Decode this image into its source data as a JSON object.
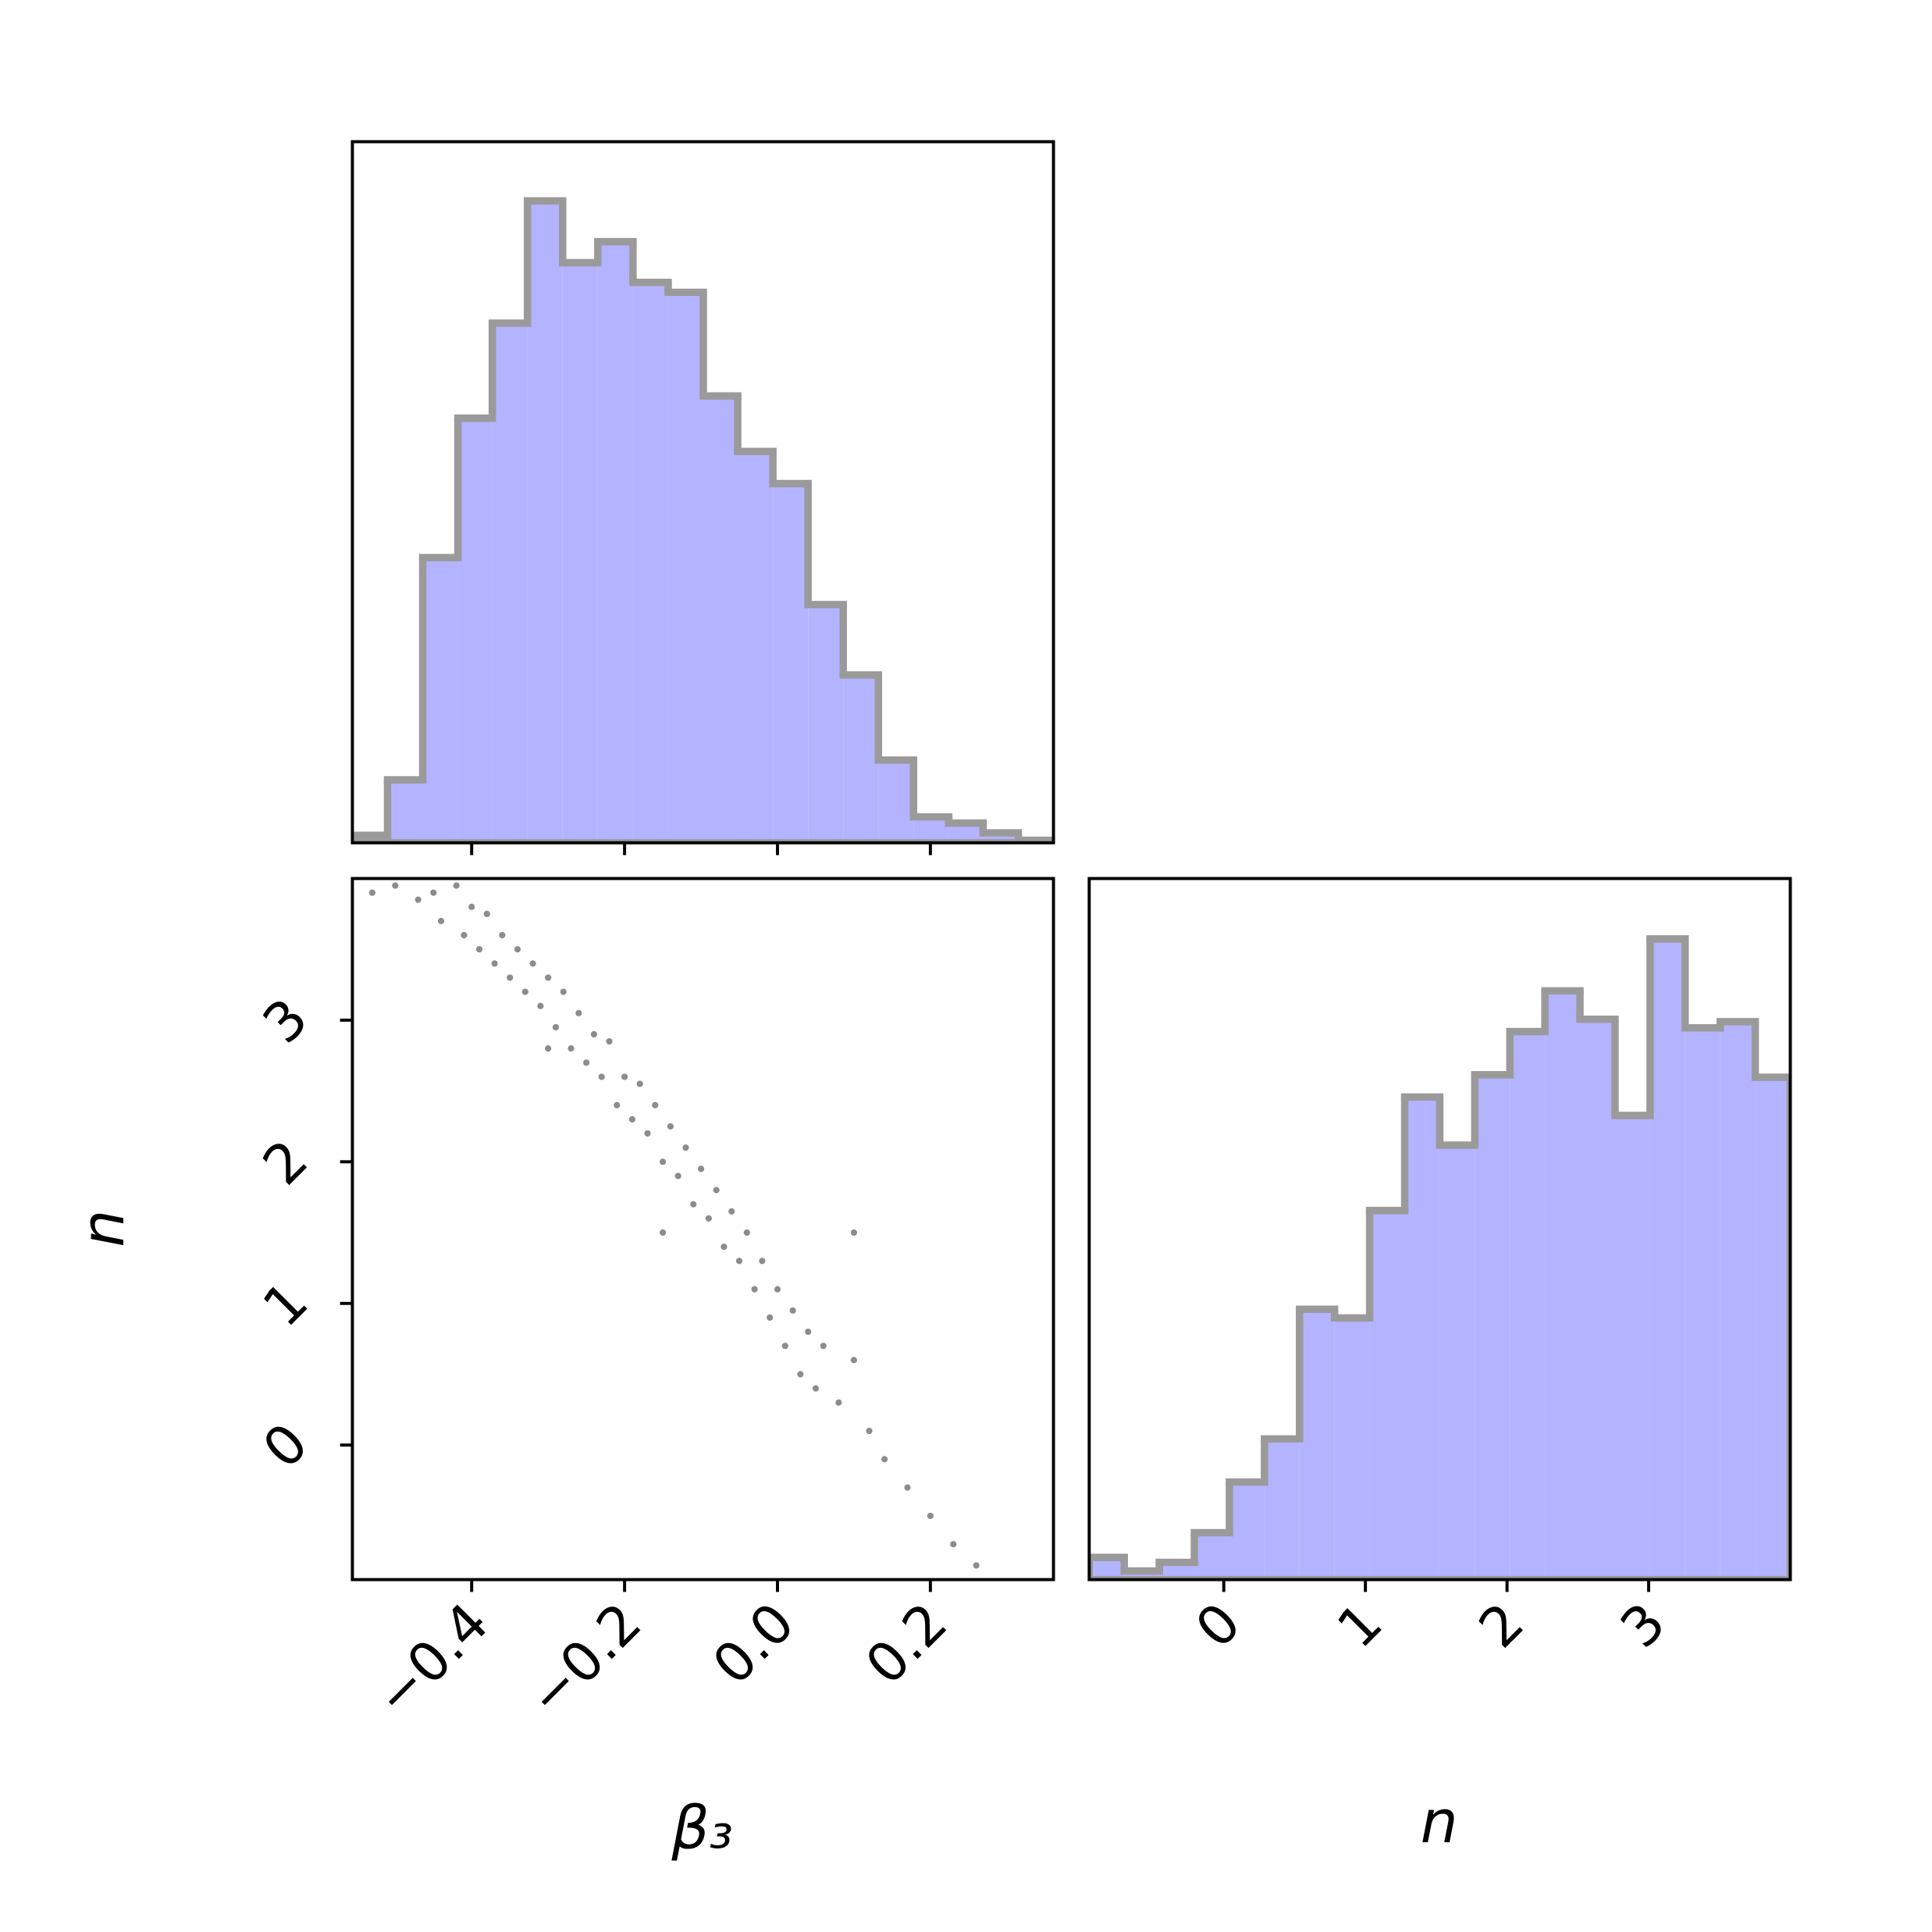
{
  "chart_data": [
    {
      "type": "histogram",
      "bins": [
        -0.556,
        -0.51,
        -0.464,
        -0.418,
        -0.373,
        -0.327,
        -0.281,
        -0.235,
        -0.189,
        -0.143,
        -0.097,
        -0.052,
        -0.006,
        0.04,
        0.086,
        0.132,
        0.178,
        0.224,
        0.269,
        0.315,
        0.361
      ],
      "values": [
        6,
        51,
        231,
        344,
        421,
        520,
        470,
        487,
        454,
        446,
        362,
        317,
        291,
        193,
        136,
        67,
        21,
        16,
        8,
        2
      ],
      "xlim": [
        -0.556,
        0.361
      ],
      "ylim": [
        0,
        568
      ],
      "color": "#b3b3ff",
      "edgecolor": "#9a9a9a"
    },
    {
      "type": "scatter",
      "x": [
        -0.5,
        -0.47,
        -0.45,
        -0.44,
        -0.42,
        -0.41,
        -0.4,
        -0.39,
        -0.38,
        -0.37,
        -0.36,
        -0.35,
        -0.34,
        -0.33,
        -0.32,
        -0.31,
        -0.3,
        -0.29,
        -0.28,
        -0.27,
        -0.26,
        -0.25,
        -0.24,
        -0.23,
        -0.22,
        -0.21,
        -0.2,
        -0.19,
        -0.18,
        -0.17,
        -0.16,
        -0.15,
        -0.14,
        -0.13,
        -0.12,
        -0.11,
        -0.1,
        -0.09,
        -0.08,
        -0.07,
        -0.06,
        -0.05,
        -0.04,
        -0.03,
        -0.02,
        -0.01,
        0.0,
        0.01,
        0.02,
        0.03,
        0.04,
        0.05,
        0.06,
        0.08,
        0.1,
        0.12,
        0.14,
        0.17,
        0.2,
        0.23,
        0.26,
        -0.53,
        -0.3,
        -0.15,
        0.1
      ],
      "y": [
        3.95,
        3.85,
        3.9,
        3.7,
        3.95,
        3.6,
        3.8,
        3.5,
        3.75,
        3.4,
        3.6,
        3.3,
        3.5,
        3.2,
        3.4,
        3.1,
        3.3,
        2.95,
        3.2,
        2.8,
        3.05,
        2.7,
        2.9,
        2.6,
        2.85,
        2.4,
        2.6,
        2.3,
        2.55,
        2.2,
        2.4,
        2.0,
        2.25,
        1.9,
        2.1,
        1.7,
        1.95,
        1.6,
        1.8,
        1.4,
        1.65,
        1.3,
        1.5,
        1.1,
        1.3,
        0.9,
        1.1,
        0.7,
        0.95,
        0.5,
        0.8,
        0.4,
        0.7,
        0.3,
        0.6,
        0.1,
        -0.1,
        -0.3,
        -0.5,
        -0.7,
        -0.85,
        3.9,
        2.8,
        1.5,
        1.5
      ],
      "xlim": [
        -0.556,
        0.361
      ],
      "ylim": [
        -0.95,
        4.0
      ],
      "xticks": [
        {
          "value": -0.4,
          "label": "−0.4"
        },
        {
          "value": -0.2,
          "label": "−0.2"
        },
        {
          "value": 0,
          "label": "0.0"
        },
        0.2
      ],
      "yticks": [
        0,
        1,
        2,
        3
      ],
      "xlabel": "β₃",
      "ylabel": "n",
      "color": "#000000"
    },
    {
      "type": "histogram",
      "bins": [
        -0.95,
        -0.7025,
        -0.455,
        -0.2075,
        0.04,
        0.2875,
        0.535,
        0.7825,
        1.03,
        1.2775,
        1.525,
        1.7725,
        2.02,
        2.2675,
        2.515,
        2.7625,
        3.01,
        3.2575,
        3.505,
        3.7525,
        4.0
      ],
      "values": [
        18,
        7,
        14,
        38,
        79,
        114,
        219,
        212,
        299,
        391,
        352,
        409,
        444,
        477,
        454,
        376,
        519,
        447,
        452,
        407
      ],
      "xlim": [
        -0.95,
        4.0
      ],
      "ylim": [
        0,
        568
      ],
      "xticks": [
        0,
        1,
        2,
        3
      ],
      "xlabel": "n",
      "color": "#b3b3ff",
      "edgecolor": "#9a9a9a"
    }
  ]
}
